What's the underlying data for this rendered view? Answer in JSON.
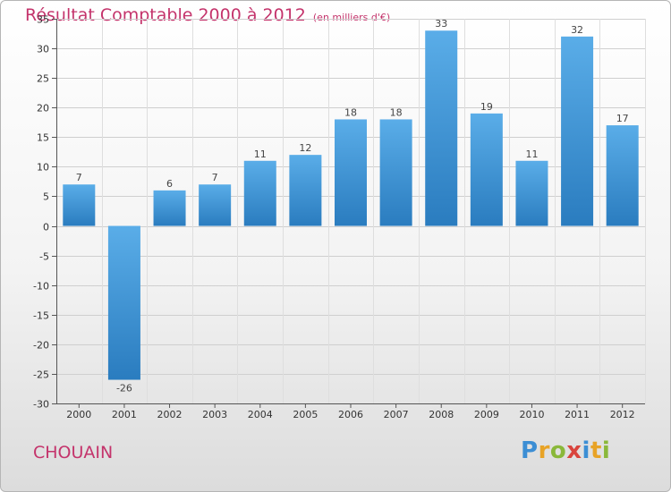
{
  "title": {
    "main": "Résultat Comptable 2000 à 2012",
    "sub": "(en milliers d'€)"
  },
  "commune": "CHOUAIN",
  "logo": {
    "text": "Proxiti",
    "letters": [
      {
        "char": "P",
        "color": "#3c8ed4"
      },
      {
        "char": "r",
        "color": "#e8a326"
      },
      {
        "char": "o",
        "color": "#8ab83a"
      },
      {
        "char": "x",
        "color": "#d9443d"
      },
      {
        "char": "i",
        "color": "#3c8ed4"
      },
      {
        "char": "t",
        "color": "#e8a326"
      },
      {
        "char": "i",
        "color": "#8ab83a"
      }
    ]
  },
  "colors": {
    "accent": "#c4336b",
    "bar_light": "#5aade8",
    "bar_dark": "#2a7cbf"
  },
  "chart_data": {
    "type": "bar",
    "title": "Résultat Comptable 2000 à 2012",
    "xlabel": "",
    "ylabel": "",
    "ylim": [
      -30,
      35
    ],
    "yticks": [
      35,
      30,
      25,
      20,
      15,
      10,
      5,
      0,
      -5,
      -10,
      -15,
      -20,
      -25,
      -30
    ],
    "grid": true,
    "categories": [
      "2000",
      "2001",
      "2002",
      "2003",
      "2004",
      "2005",
      "2006",
      "2007",
      "2008",
      "2009",
      "2010",
      "2011",
      "2012"
    ],
    "values": [
      7,
      -26,
      6,
      7,
      11,
      12,
      18,
      18,
      33,
      19,
      11,
      32,
      17
    ]
  }
}
